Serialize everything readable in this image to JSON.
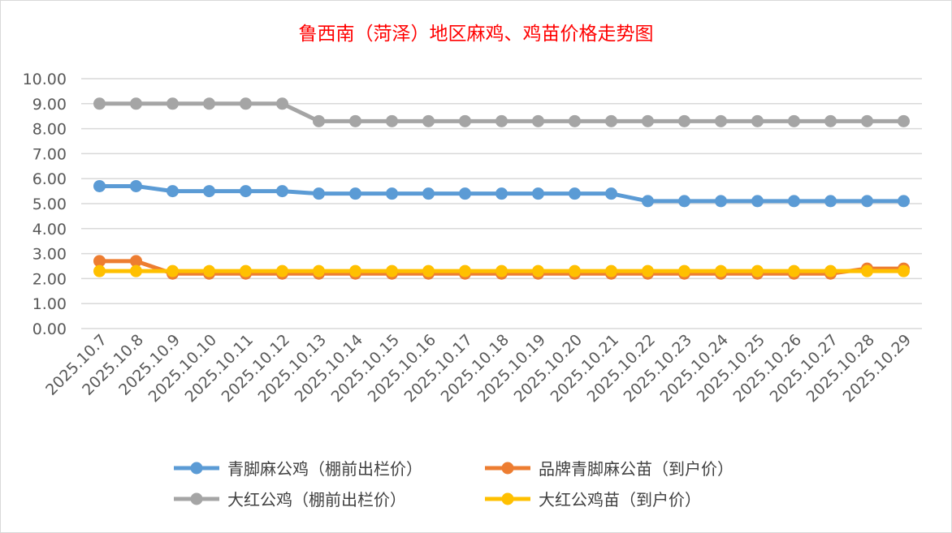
{
  "chart_data": {
    "type": "line",
    "title": "鲁西南（菏泽）地区麻鸡、鸡苗价格走势图",
    "categories": [
      "2025.10.7",
      "2025.10.8",
      "2025.10.9",
      "2025.10.10",
      "2025.10.11",
      "2025.10.12",
      "2025.10.13",
      "2025.10.14",
      "2025.10.15",
      "2025.10.16",
      "2025.10.17",
      "2025.10.18",
      "2025.10.19",
      "2025.10.20",
      "2025.10.21",
      "2025.10.22",
      "2025.10.23",
      "2025.10.24",
      "2025.10.25",
      "2025.10.26",
      "2025.10.27",
      "2025.10.28",
      "2025.10.29"
    ],
    "ylim": [
      0,
      10
    ],
    "yticks": [
      "0.00",
      "1.00",
      "2.00",
      "3.00",
      "4.00",
      "5.00",
      "6.00",
      "7.00",
      "8.00",
      "9.00",
      "10.00"
    ],
    "grid": true,
    "legend_position": "bottom",
    "series": [
      {
        "name": "青脚麻公鸡（棚前出栏价）",
        "color": "#5b9bd5",
        "values": [
          5.7,
          5.7,
          5.5,
          5.5,
          5.5,
          5.5,
          5.4,
          5.4,
          5.4,
          5.4,
          5.4,
          5.4,
          5.4,
          5.4,
          5.4,
          5.1,
          5.1,
          5.1,
          5.1,
          5.1,
          5.1,
          5.1,
          5.1
        ]
      },
      {
        "name": "品牌青脚麻公苗（到户价）",
        "color": "#ed7d31",
        "values": [
          2.7,
          2.7,
          2.2,
          2.2,
          2.2,
          2.2,
          2.2,
          2.2,
          2.2,
          2.2,
          2.2,
          2.2,
          2.2,
          2.2,
          2.2,
          2.2,
          2.2,
          2.2,
          2.2,
          2.2,
          2.2,
          2.4,
          2.4
        ]
      },
      {
        "name": "大红公鸡（棚前出栏价）",
        "color": "#a5a5a5",
        "values": [
          9.0,
          9.0,
          9.0,
          9.0,
          9.0,
          9.0,
          8.3,
          8.3,
          8.3,
          8.3,
          8.3,
          8.3,
          8.3,
          8.3,
          8.3,
          8.3,
          8.3,
          8.3,
          8.3,
          8.3,
          8.3,
          8.3,
          8.3
        ]
      },
      {
        "name": "大红公鸡苗（到户价）",
        "color": "#ffc000",
        "values": [
          2.3,
          2.3,
          2.3,
          2.3,
          2.3,
          2.3,
          2.3,
          2.3,
          2.3,
          2.3,
          2.3,
          2.3,
          2.3,
          2.3,
          2.3,
          2.3,
          2.3,
          2.3,
          2.3,
          2.3,
          2.3,
          2.3,
          2.3
        ]
      }
    ]
  }
}
